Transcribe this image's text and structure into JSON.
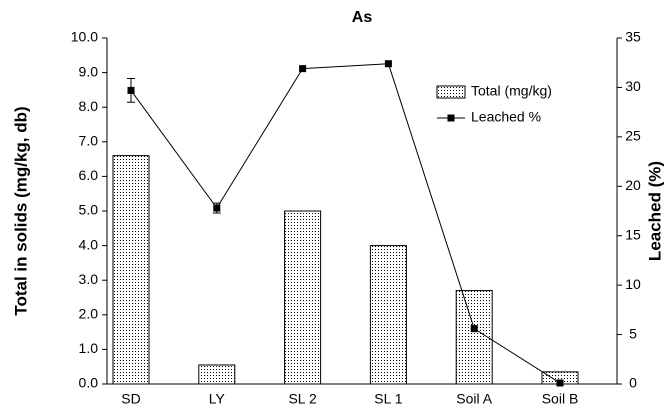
{
  "chart_data": {
    "type": "bar-line",
    "title": "As",
    "ylabel": "Total in solids (mg/kg, db)",
    "y2label": "Leached (%)",
    "categories": [
      "SD",
      "LY",
      "SL 2",
      "SL 1",
      "Soil A",
      "Soil B"
    ],
    "series": [
      {
        "name": "Total (mg/kg)",
        "type": "bar",
        "color": "#000000",
        "values": [
          6.6,
          0.55,
          5.0,
          4.0,
          2.7,
          0.35
        ]
      },
      {
        "name": "Leached %",
        "type": "line",
        "axis": "y2",
        "color": "#000000",
        "values": [
          29.7,
          17.8,
          31.9,
          32.4,
          5.6,
          0.1
        ],
        "errors": [
          1.2,
          0.5,
          null,
          null,
          null,
          null
        ]
      }
    ],
    "ylim": [
      0,
      10
    ],
    "yticks": [
      {
        "value": 0,
        "label": "0.0"
      },
      {
        "value": 1,
        "label": "1.0"
      },
      {
        "value": 2,
        "label": "2.0"
      },
      {
        "value": 3,
        "label": "3.0"
      },
      {
        "value": 4,
        "label": "4.0"
      },
      {
        "value": 5,
        "label": "5.0"
      },
      {
        "value": 6,
        "label": "6.0"
      },
      {
        "value": 7,
        "label": "7.0"
      },
      {
        "value": 8,
        "label": "8.0"
      },
      {
        "value": 9,
        "label": "9.0"
      },
      {
        "value": 10,
        "label": "10.0"
      }
    ],
    "y2lim": [
      0,
      35
    ],
    "y2ticks": [
      0,
      5,
      10,
      15,
      20,
      25,
      30,
      35
    ],
    "legend": "upper right"
  }
}
